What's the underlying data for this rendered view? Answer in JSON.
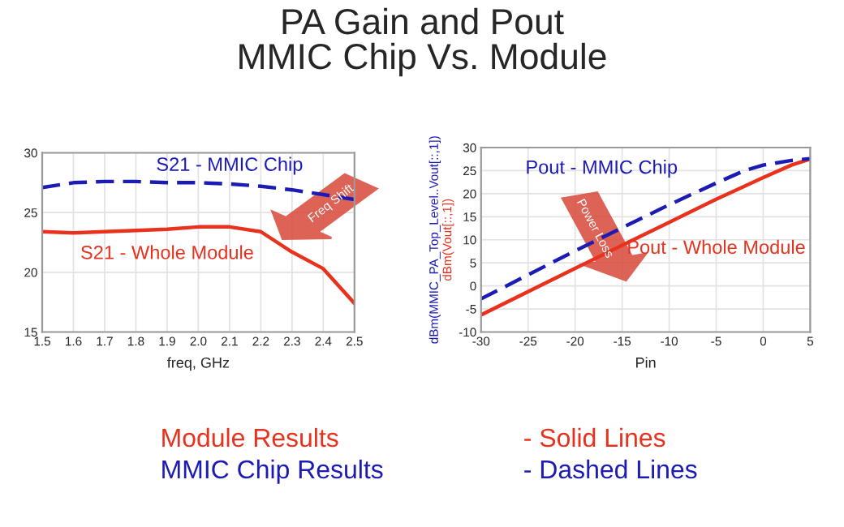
{
  "chart_data": [
    {
      "type": "line",
      "title": "PA Gain and Pout\nMMIC Chip Vs. Module",
      "xlabel": "freq, GHz",
      "x": [
        1.5,
        1.6,
        1.7,
        1.8,
        1.9,
        2.0,
        2.1,
        2.2,
        2.3,
        2.4,
        2.5
      ],
      "series": [
        {
          "name": "S21 - Whole Module",
          "color": "#e8321e",
          "line_style": "solid",
          "values": [
            23.4,
            23.3,
            23.4,
            23.5,
            23.6,
            23.8,
            23.8,
            23.4,
            21.7,
            20.3,
            17.4
          ]
        },
        {
          "name": "S21 - MMIC Chip",
          "color": "#1c1cb4",
          "line_style": "dashed",
          "values": [
            27.1,
            27.5,
            27.6,
            27.6,
            27.5,
            27.5,
            27.4,
            27.2,
            26.9,
            26.5,
            26.1
          ]
        }
      ],
      "xlim": [
        1.5,
        2.5
      ],
      "ylim": [
        15,
        30
      ],
      "xticks": [
        1.5,
        1.6,
        1.7,
        1.8,
        1.9,
        {
          "value": 2.0,
          "label": "2.0"
        },
        2.1,
        2.2,
        2.3,
        2.4,
        2.5
      ],
      "yticks": [
        15,
        20,
        25,
        30
      ],
      "grid": true,
      "legend": false,
      "annotations": [
        "Freq Shift",
        "Module Results",
        "- Solid Lines",
        "MMIC Chip Results",
        "- Dashed Lines"
      ]
    },
    {
      "type": "line",
      "xlabel": "Pin",
      "ylabel": "dBm(MMIC_PA_Top_Level..Vout[::,1])",
      "x": [
        -30,
        -20,
        -10,
        -5,
        -2,
        0,
        3,
        5
      ],
      "series": [
        {
          "name": "Pout - Whole Module",
          "color": "#e8321e",
          "line_style": "solid",
          "values": [
            -6.3,
            3.8,
            13.8,
            18.8,
            21.6,
            23.5,
            26.2,
            27.5
          ]
        },
        {
          "name": "Pout - MMIC Chip",
          "color": "#1c1cb4",
          "line_style": "dashed",
          "values": [
            -2.8,
            7.6,
            17.6,
            22.3,
            25.0,
            26.2,
            27.2,
            27.6
          ]
        }
      ],
      "xlim": [
        -30,
        5
      ],
      "ylim": [
        -10,
        30
      ],
      "xticks": [
        -30,
        -25,
        -20,
        -15,
        -10,
        -5,
        0,
        5
      ],
      "yticks": [
        -10,
        -5,
        0,
        5,
        10,
        15,
        20,
        25,
        30
      ],
      "grid": true,
      "legend": false,
      "annotations": [
        "Power Loss",
        "dBm(Vout[::,1])"
      ]
    }
  ]
}
